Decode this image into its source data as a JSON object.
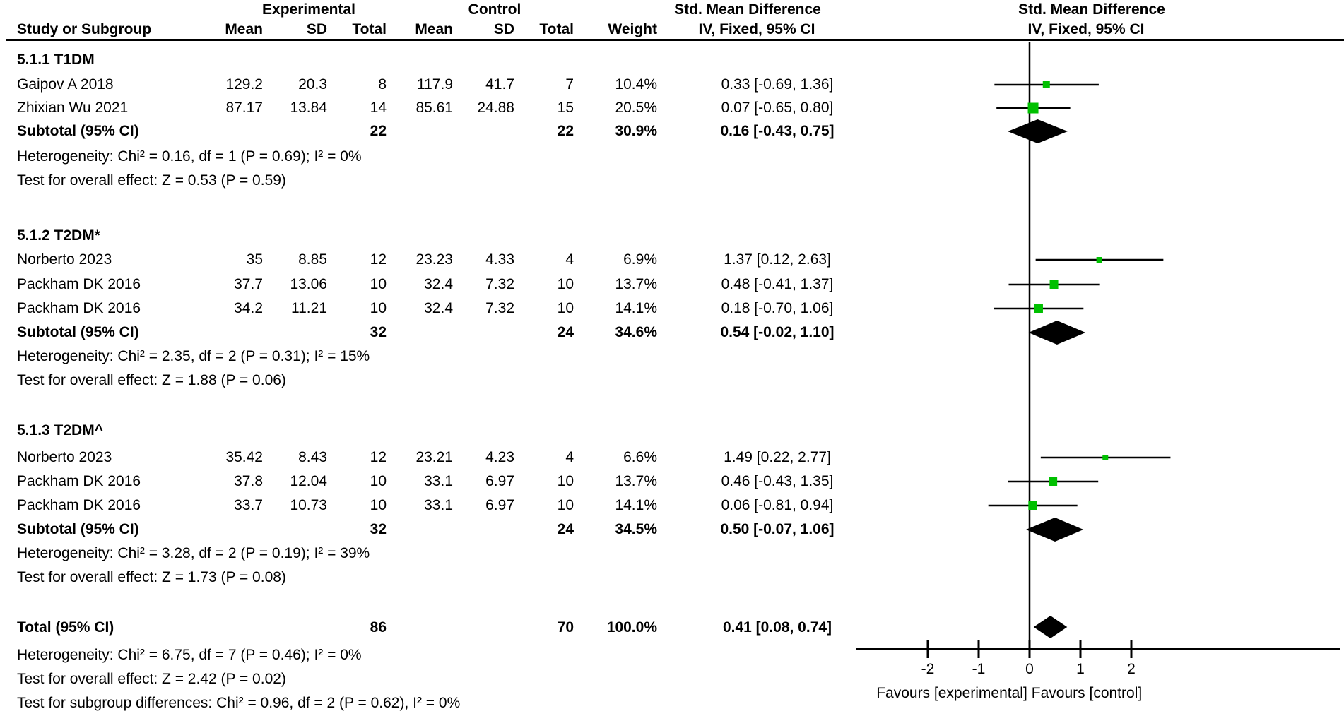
{
  "title_row": {
    "experimental": "Experimental",
    "control": "Control",
    "smd_left": "Std. Mean Difference",
    "smd_right": "Std. Mean Difference"
  },
  "header_row": {
    "study": "Study or Subgroup",
    "mean_exp": "Mean",
    "sd_exp": "SD",
    "total_exp": "Total",
    "mean_ctl": "Mean",
    "sd_ctl": "SD",
    "total_ctl": "Total",
    "weight": "Weight",
    "iv_left": "IV, Fixed, 95% CI",
    "iv_right": "IV, Fixed, 95% CI"
  },
  "colors": {
    "marker_green": "#00c000",
    "diamond_black": "#000000",
    "text": "#000000",
    "background": "#ffffff"
  },
  "chart_data": {
    "type": "forest",
    "effect_measure": "Std. Mean Difference",
    "model": "IV, Fixed, 95% CI",
    "axis": {
      "ticks": [
        -2,
        -1,
        0,
        1,
        2
      ],
      "favours_left": "Favours [experimental]",
      "favours_right": "Favours [control]"
    },
    "groups": [
      {
        "name": "5.1.1 T1DM",
        "studies": [
          {
            "label": "Gaipov A 2018",
            "mean_e": "129.2",
            "sd_e": "20.3",
            "n_e": "8",
            "mean_c": "117.9",
            "sd_c": "41.7",
            "n_c": "7",
            "weight": "10.4%",
            "weight_val": 10.4,
            "ci_text": "0.33 [-0.69, 1.36]",
            "est": 0.33,
            "lo": -0.69,
            "hi": 1.36
          },
          {
            "label": "Zhixian Wu 2021",
            "mean_e": "87.17",
            "sd_e": "13.84",
            "n_e": "14",
            "mean_c": "85.61",
            "sd_c": "24.88",
            "n_c": "15",
            "weight": "20.5%",
            "weight_val": 20.5,
            "ci_text": "0.07 [-0.65, 0.80]",
            "est": 0.07,
            "lo": -0.65,
            "hi": 0.8
          }
        ],
        "subtotal": {
          "label": "Subtotal (95% CI)",
          "n_e": "22",
          "n_c": "22",
          "weight": "30.9%",
          "ci_text": "0.16 [-0.43, 0.75]",
          "est": 0.16,
          "lo": -0.43,
          "hi": 0.75
        },
        "heterogeneity": "Heterogeneity: Chi² = 0.16, df = 1 (P = 0.69); I² = 0%",
        "overall_test": "Test for overall effect: Z = 0.53 (P = 0.59)"
      },
      {
        "name": "5.1.2 T2DM*",
        "studies": [
          {
            "label": "Norberto 2023",
            "mean_e": "35",
            "sd_e": "8.85",
            "n_e": "12",
            "mean_c": "23.23",
            "sd_c": "4.33",
            "n_c": "4",
            "weight": "6.9%",
            "weight_val": 6.9,
            "ci_text": "1.37 [0.12, 2.63]",
            "est": 1.37,
            "lo": 0.12,
            "hi": 2.63
          },
          {
            "label": "Packham DK 2016",
            "mean_e": "37.7",
            "sd_e": "13.06",
            "n_e": "10",
            "mean_c": "32.4",
            "sd_c": "7.32",
            "n_c": "10",
            "weight": "13.7%",
            "weight_val": 13.7,
            "ci_text": "0.48 [-0.41, 1.37]",
            "est": 0.48,
            "lo": -0.41,
            "hi": 1.37
          },
          {
            "label": "Packham DK 2016",
            "mean_e": "34.2",
            "sd_e": "11.21",
            "n_e": "10",
            "mean_c": "32.4",
            "sd_c": "7.32",
            "n_c": "10",
            "weight": "14.1%",
            "weight_val": 14.1,
            "ci_text": "0.18 [-0.70, 1.06]",
            "est": 0.18,
            "lo": -0.7,
            "hi": 1.06
          }
        ],
        "subtotal": {
          "label": "Subtotal (95% CI)",
          "n_e": "32",
          "n_c": "24",
          "weight": "34.6%",
          "ci_text": "0.54 [-0.02, 1.10]",
          "est": 0.54,
          "lo": -0.02,
          "hi": 1.1
        },
        "heterogeneity": "Heterogeneity: Chi² = 2.35, df = 2 (P = 0.31); I² = 15%",
        "overall_test": "Test for overall effect: Z = 1.88 (P = 0.06)"
      },
      {
        "name": "5.1.3 T2DM^",
        "studies": [
          {
            "label": "Norberto 2023",
            "mean_e": "35.42",
            "sd_e": "8.43",
            "n_e": "12",
            "mean_c": "23.21",
            "sd_c": "4.23",
            "n_c": "4",
            "weight": "6.6%",
            "weight_val": 6.6,
            "ci_text": "1.49 [0.22, 2.77]",
            "est": 1.49,
            "lo": 0.22,
            "hi": 2.77
          },
          {
            "label": "Packham DK 2016",
            "mean_e": "37.8",
            "sd_e": "12.04",
            "n_e": "10",
            "mean_c": "33.1",
            "sd_c": "6.97",
            "n_c": "10",
            "weight": "13.7%",
            "weight_val": 13.7,
            "ci_text": "0.46 [-0.43, 1.35]",
            "est": 0.46,
            "lo": -0.43,
            "hi": 1.35
          },
          {
            "label": "Packham DK 2016",
            "mean_e": "33.7",
            "sd_e": "10.73",
            "n_e": "10",
            "mean_c": "33.1",
            "sd_c": "6.97",
            "n_c": "10",
            "weight": "14.1%",
            "weight_val": 14.1,
            "ci_text": "0.06 [-0.81, 0.94]",
            "est": 0.06,
            "lo": -0.81,
            "hi": 0.94
          }
        ],
        "subtotal": {
          "label": "Subtotal (95% CI)",
          "n_e": "32",
          "n_c": "24",
          "weight": "34.5%",
          "ci_text": "0.50 [-0.07, 1.06]",
          "est": 0.5,
          "lo": -0.07,
          "hi": 1.06
        },
        "heterogeneity": "Heterogeneity: Chi² = 3.28, df = 2 (P = 0.19); I² = 39%",
        "overall_test": "Test for overall effect: Z = 1.73 (P = 0.08)"
      }
    ],
    "total": {
      "label": "Total (95% CI)",
      "n_e": "86",
      "n_c": "70",
      "weight": "100.0%",
      "ci_text": "0.41 [0.08, 0.74]",
      "est": 0.41,
      "lo": 0.08,
      "hi": 0.74,
      "footer": [
        "Heterogeneity: Chi² = 6.75, df = 7 (P = 0.46); I² = 0%",
        "Test for overall effect: Z = 2.42 (P = 0.02)",
        "Test for subgroup differences: Chi² = 0.96, df = 2 (P = 0.62), I² = 0%"
      ]
    }
  }
}
